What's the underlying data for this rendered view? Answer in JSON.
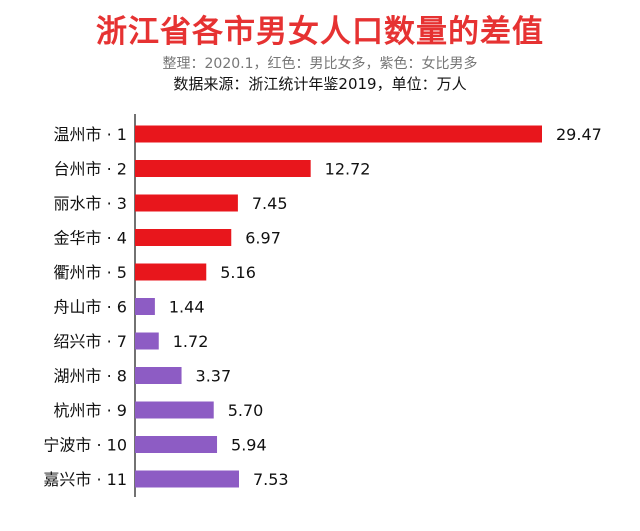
{
  "header": {
    "title": "浙江省各市男女人口数量的差值",
    "subtitle": "整理：2020.1，红色：男比女多，紫色：女比男多",
    "source": "数据来源：浙江统计年鉴2019，单位：万人"
  },
  "colors": {
    "male_more": "#e8161c",
    "female_more": "#8d5cc4",
    "axis": "#444444"
  },
  "chart_data": {
    "type": "bar",
    "orientation": "horizontal",
    "title": "浙江省各市男女人口数量的差值",
    "unit": "万人",
    "categories": [
      "温州市 · 1",
      "台州市 · 2",
      "丽水市 · 3",
      "金华市 · 4",
      "衢州市 · 5",
      "舟山市 · 6",
      "绍兴市 · 7",
      "湖州市 · 8",
      "杭州市 · 9",
      "宁波市 · 10",
      "嘉兴市 · 11"
    ],
    "values": [
      29.47,
      12.72,
      7.45,
      6.97,
      5.16,
      1.44,
      1.72,
      3.37,
      5.7,
      5.94,
      7.53
    ],
    "value_labels": [
      "29.47",
      "12.72",
      "7.45",
      "6.97",
      "5.16",
      "1.44",
      "1.72",
      "3.37",
      "5.70",
      "5.94",
      "7.53"
    ],
    "groups": [
      "male_more",
      "male_more",
      "male_more",
      "male_more",
      "male_more",
      "female_more",
      "female_more",
      "female_more",
      "female_more",
      "female_more",
      "female_more"
    ],
    "xlim": [
      0,
      29.47
    ],
    "grid": false,
    "legend": "none"
  }
}
